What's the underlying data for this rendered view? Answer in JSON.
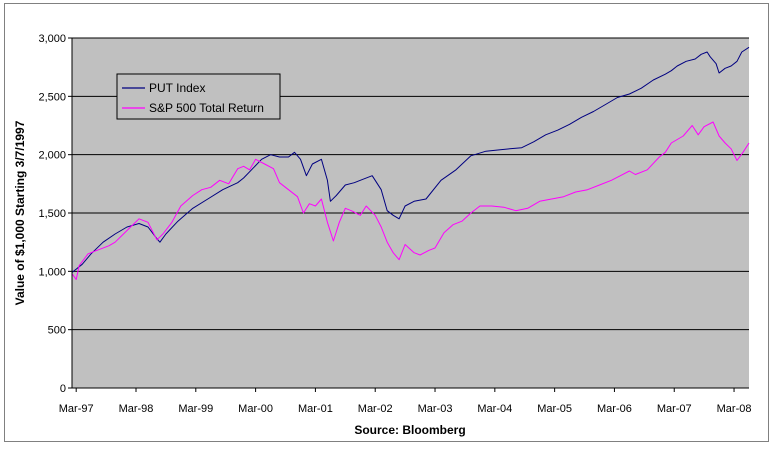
{
  "chart_data": {
    "type": "line",
    "xlabel": "Source:  Bloomberg",
    "ylabel": "Value of $1,000 Starting 3/7/1997",
    "ylim": [
      0,
      3000
    ],
    "yticks": [
      0,
      500,
      1000,
      1500,
      2000,
      2500,
      3000
    ],
    "ytick_labels": [
      "0",
      "500",
      "1,000",
      "1,500",
      "2,000",
      "2,500",
      "3,000"
    ],
    "xticks": [
      1997.25,
      1998.25,
      1999.25,
      2000.25,
      2001.25,
      2002.25,
      2003.25,
      2004.25,
      2005.25,
      2006.25,
      2007.25,
      2008.25
    ],
    "xtick_labels": [
      "Mar-97",
      "Mar-98",
      "Mar-99",
      "Mar-00",
      "Mar-01",
      "Mar-02",
      "Mar-03",
      "Mar-04",
      "Mar-05",
      "Mar-06",
      "Mar-07",
      "Mar-08"
    ],
    "xlim": [
      1997.18,
      2008.5
    ],
    "grid": true,
    "legend_position": "top-left",
    "plot_background": "#C0C0C0",
    "series": [
      {
        "name": "PUT Index",
        "color": "#000080",
        "x": [
          1997.18,
          1997.35,
          1997.5,
          1997.7,
          1997.9,
          1998.1,
          1998.3,
          1998.45,
          1998.6,
          1998.65,
          1998.75,
          1998.95,
          1999.2,
          1999.45,
          1999.7,
          1999.95,
          2000.05,
          2000.2,
          2000.35,
          2000.5,
          2000.65,
          2000.8,
          2000.9,
          2001.0,
          2001.1,
          2001.2,
          2001.35,
          2001.45,
          2001.5,
          2001.6,
          2001.75,
          2001.9,
          2002.0,
          2002.2,
          2002.35,
          2002.45,
          2002.55,
          2002.65,
          2002.75,
          2002.9,
          2003.1,
          2003.35,
          2003.6,
          2003.85,
          2004.1,
          2004.3,
          2004.5,
          2004.7,
          2004.9,
          2005.1,
          2005.3,
          2005.5,
          2005.7,
          2005.9,
          2006.1,
          2006.3,
          2006.5,
          2006.7,
          2006.9,
          2007.1,
          2007.2,
          2007.3,
          2007.45,
          2007.6,
          2007.7,
          2007.8,
          2007.85,
          2007.95,
          2008.0,
          2008.1,
          2008.2,
          2008.3,
          2008.38,
          2008.5
        ],
        "values": [
          990,
          1060,
          1150,
          1250,
          1320,
          1380,
          1410,
          1380,
          1280,
          1250,
          1320,
          1430,
          1540,
          1620,
          1700,
          1760,
          1800,
          1880,
          1960,
          2000,
          1980,
          1980,
          2020,
          1960,
          1820,
          1920,
          1960,
          1780,
          1600,
          1650,
          1740,
          1760,
          1780,
          1820,
          1700,
          1520,
          1480,
          1450,
          1560,
          1600,
          1620,
          1780,
          1870,
          1990,
          2030,
          2040,
          2050,
          2060,
          2110,
          2170,
          2210,
          2260,
          2320,
          2370,
          2430,
          2490,
          2520,
          2570,
          2640,
          2690,
          2720,
          2760,
          2800,
          2820,
          2860,
          2880,
          2840,
          2780,
          2700,
          2740,
          2760,
          2800,
          2880,
          2920
        ]
      },
      {
        "name": "S&P 500 Total Return",
        "color": "#FF00FF",
        "x": [
          1997.18,
          1997.25,
          1997.3,
          1997.45,
          1997.6,
          1997.8,
          1997.9,
          1998.1,
          1998.3,
          1998.45,
          1998.6,
          1998.7,
          1998.85,
          1999.0,
          1999.2,
          1999.35,
          1999.5,
          1999.65,
          1999.8,
          1999.95,
          2000.05,
          2000.15,
          2000.25,
          2000.4,
          2000.55,
          2000.65,
          2000.8,
          2000.95,
          2001.05,
          2001.15,
          2001.25,
          2001.35,
          2001.45,
          2001.55,
          2001.65,
          2001.75,
          2001.85,
          2002.0,
          2002.1,
          2002.25,
          2002.35,
          2002.45,
          2002.55,
          2002.65,
          2002.75,
          2002.9,
          2003.0,
          2003.15,
          2003.25,
          2003.4,
          2003.55,
          2003.7,
          2003.85,
          2004.0,
          2004.2,
          2004.4,
          2004.6,
          2004.8,
          2005.0,
          2005.2,
          2005.4,
          2005.6,
          2005.8,
          2006.0,
          2006.2,
          2006.35,
          2006.5,
          2006.6,
          2006.8,
          2007.0,
          2007.1,
          2007.2,
          2007.4,
          2007.55,
          2007.65,
          2007.75,
          2007.9,
          2008.0,
          2008.1,
          2008.2,
          2008.3,
          2008.4,
          2008.5
        ],
        "values": [
          980,
          930,
          1050,
          1150,
          1180,
          1220,
          1250,
          1350,
          1450,
          1420,
          1270,
          1320,
          1420,
          1560,
          1650,
          1700,
          1720,
          1780,
          1750,
          1880,
          1900,
          1870,
          1960,
          1920,
          1880,
          1760,
          1700,
          1640,
          1500,
          1580,
          1560,
          1620,
          1420,
          1260,
          1420,
          1540,
          1520,
          1480,
          1560,
          1480,
          1380,
          1250,
          1160,
          1100,
          1230,
          1160,
          1140,
          1180,
          1200,
          1330,
          1400,
          1430,
          1500,
          1560,
          1560,
          1550,
          1520,
          1540,
          1600,
          1620,
          1640,
          1680,
          1700,
          1740,
          1780,
          1820,
          1860,
          1830,
          1870,
          1980,
          2020,
          2100,
          2160,
          2250,
          2170,
          2240,
          2280,
          2160,
          2100,
          2050,
          1950,
          2020,
          2100
        ]
      }
    ]
  }
}
